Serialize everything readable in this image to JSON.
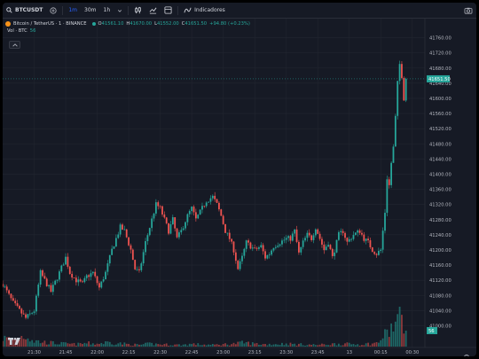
{
  "toolbar": {
    "symbol": "BTCUSDT",
    "intervals": [
      "1m",
      "30m",
      "1h"
    ],
    "active_interval": "1m",
    "indicators_label": "Indicadores"
  },
  "legend": {
    "title": "Bitcoin / TetherUS · 1 · BINANCE",
    "o_label": "O",
    "o_value": "41561.10",
    "h_label": "H",
    "h_value": "41670.00",
    "l_label": "L",
    "l_value": "41552.00",
    "c_label": "C",
    "c_value": "41651.50",
    "change": "+94.80 (+0.23%)",
    "vol_label": "Vol · BTC",
    "vol_value": "56"
  },
  "colors": {
    "up": "#26a69a",
    "down": "#ef5350",
    "background": "#161a25",
    "grid": "#222630",
    "axis_text": "#b2b5be",
    "price_line": "#26a69a"
  },
  "icons": [
    "search-icon",
    "add-symbol-icon",
    "candles-icon",
    "indicators-icon",
    "camera-icon",
    "collapse-icon",
    "tradingview-logo-icon",
    "settings-icon"
  ],
  "chart_data": {
    "type": "candlestick",
    "price_axis_ticks": [
      "41760.00",
      "41720.00",
      "41680.00",
      "41640.00",
      "41600.00",
      "41560.00",
      "41520.00",
      "41480.00",
      "41440.00",
      "41400.00",
      "41360.00",
      "41320.00",
      "41280.00",
      "41240.00",
      "41200.00",
      "41160.00",
      "41120.00",
      "41080.00",
      "41040.00",
      "41000.00"
    ],
    "price_axis_values": [
      41760,
      41720,
      41680,
      41640,
      41600,
      41560,
      41520,
      41480,
      41440,
      41400,
      41360,
      41320,
      41280,
      41240,
      41200,
      41160,
      41120,
      41080,
      41040,
      41000
    ],
    "time_axis_ticks": [
      "21:30",
      "21:45",
      "22:00",
      "22:15",
      "22:30",
      "22:45",
      "23:00",
      "23:15",
      "23:30",
      "23:45",
      "13",
      "00:15",
      "00:30"
    ],
    "time_axis_minutes": [
      0,
      15,
      30,
      45,
      60,
      75,
      90,
      105,
      120,
      135,
      150,
      165,
      180
    ],
    "ylim": [
      40980,
      41780
    ],
    "current_price_label": "41651.50",
    "current_price": 41651.5,
    "current_volume_label": "56",
    "current_volume": 56,
    "volume_max": 140,
    "close_anchors": [
      [
        -15,
        41110
      ],
      [
        -10,
        41060
      ],
      [
        -4,
        41020
      ],
      [
        0,
        41040
      ],
      [
        3,
        41140
      ],
      [
        5,
        41120
      ],
      [
        8,
        41090
      ],
      [
        12,
        41140
      ],
      [
        15,
        41180
      ],
      [
        17,
        41140
      ],
      [
        20,
        41120
      ],
      [
        23,
        41110
      ],
      [
        25,
        41130
      ],
      [
        28,
        41140
      ],
      [
        31,
        41100
      ],
      [
        34,
        41140
      ],
      [
        37,
        41200
      ],
      [
        39,
        41230
      ],
      [
        41,
        41260
      ],
      [
        43,
        41250
      ],
      [
        46,
        41200
      ],
      [
        48,
        41150
      ],
      [
        50,
        41140
      ],
      [
        53,
        41220
      ],
      [
        56,
        41280
      ],
      [
        58,
        41320
      ],
      [
        60,
        41310
      ],
      [
        62,
        41280
      ],
      [
        64,
        41250
      ],
      [
        66,
        41280
      ],
      [
        68,
        41230
      ],
      [
        70,
        41250
      ],
      [
        73,
        41290
      ],
      [
        75,
        41310
      ],
      [
        77,
        41280
      ],
      [
        79,
        41300
      ],
      [
        82,
        41330
      ],
      [
        85,
        41340
      ],
      [
        87,
        41320
      ],
      [
        89,
        41290
      ],
      [
        91,
        41250
      ],
      [
        93,
        41230
      ],
      [
        95,
        41200
      ],
      [
        97,
        41150
      ],
      [
        99,
        41180
      ],
      [
        101,
        41220
      ],
      [
        103,
        41210
      ],
      [
        105,
        41200
      ],
      [
        108,
        41210
      ],
      [
        110,
        41180
      ],
      [
        112,
        41190
      ],
      [
        114,
        41210
      ],
      [
        117,
        41220
      ],
      [
        120,
        41230
      ],
      [
        122,
        41230
      ],
      [
        124,
        41250
      ],
      [
        126,
        41190
      ],
      [
        128,
        41220
      ],
      [
        130,
        41240
      ],
      [
        132,
        41230
      ],
      [
        134,
        41260
      ],
      [
        136,
        41230
      ],
      [
        138,
        41200
      ],
      [
        140,
        41220
      ],
      [
        142,
        41180
      ],
      [
        145,
        41240
      ],
      [
        147,
        41250
      ],
      [
        149,
        41220
      ],
      [
        152,
        41240
      ],
      [
        155,
        41250
      ],
      [
        157,
        41230
      ],
      [
        159,
        41220
      ],
      [
        161,
        41200
      ],
      [
        163,
        41190
      ],
      [
        165,
        41200
      ],
      [
        167,
        41300
      ],
      [
        168,
        41390
      ],
      [
        169,
        41370
      ],
      [
        170,
        41430
      ],
      [
        171,
        41470
      ],
      [
        172,
        41550
      ],
      [
        173,
        41640
      ],
      [
        174,
        41690
      ],
      [
        175,
        41660
      ],
      [
        176,
        41600
      ],
      [
        177,
        41651
      ]
    ],
    "volume_anchors": [
      [
        -15,
        30
      ],
      [
        -10,
        25
      ],
      [
        -4,
        40
      ],
      [
        0,
        20
      ],
      [
        5,
        15
      ],
      [
        10,
        12
      ],
      [
        15,
        10
      ],
      [
        20,
        8
      ],
      [
        25,
        12
      ],
      [
        30,
        10
      ],
      [
        35,
        15
      ],
      [
        40,
        12
      ],
      [
        45,
        8
      ],
      [
        50,
        6
      ],
      [
        55,
        10
      ],
      [
        60,
        8
      ],
      [
        65,
        7
      ],
      [
        70,
        6
      ],
      [
        75,
        9
      ],
      [
        80,
        7
      ],
      [
        85,
        6
      ],
      [
        90,
        8
      ],
      [
        95,
        10
      ],
      [
        100,
        14
      ],
      [
        105,
        10
      ],
      [
        110,
        8
      ],
      [
        115,
        9
      ],
      [
        120,
        10
      ],
      [
        125,
        8
      ],
      [
        130,
        7
      ],
      [
        135,
        6
      ],
      [
        140,
        8
      ],
      [
        145,
        10
      ],
      [
        150,
        9
      ],
      [
        155,
        8
      ],
      [
        160,
        10
      ],
      [
        163,
        12
      ],
      [
        165,
        25
      ],
      [
        167,
        40
      ],
      [
        169,
        55
      ],
      [
        171,
        70
      ],
      [
        173,
        95
      ],
      [
        174,
        120
      ],
      [
        175,
        90
      ],
      [
        176,
        60
      ],
      [
        177,
        56
      ]
    ]
  }
}
